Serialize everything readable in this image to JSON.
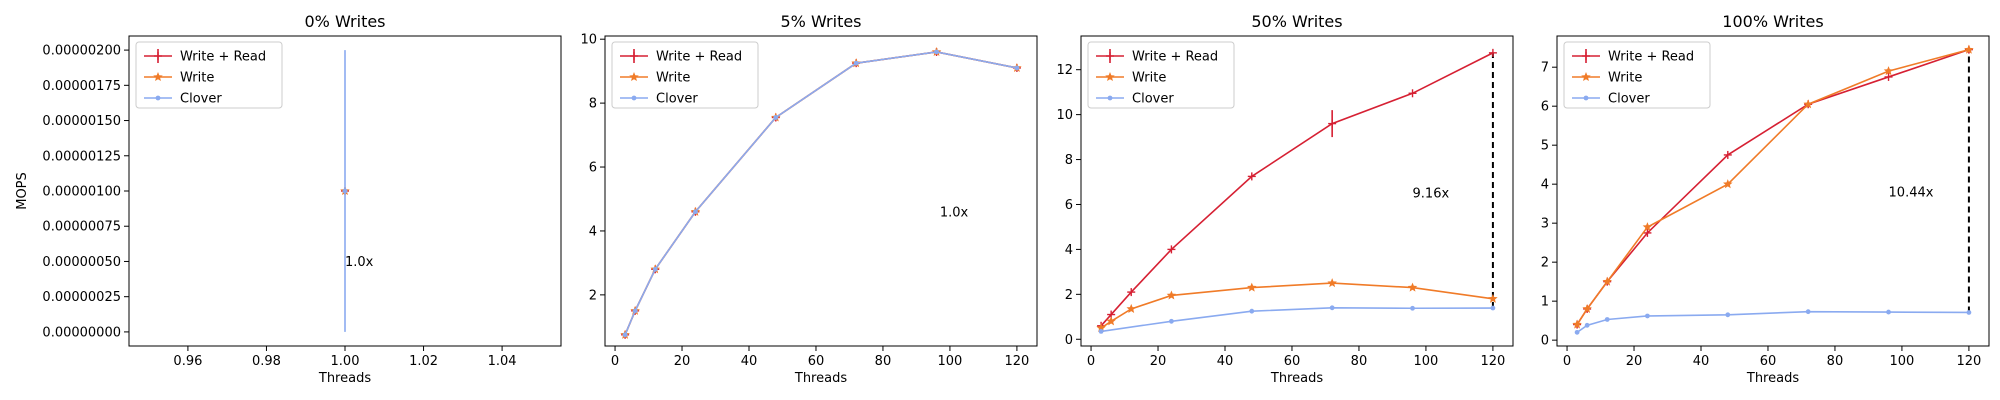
{
  "colors": {
    "write_read": "#d62033",
    "write": "#f07b28",
    "clover": "#8aaaf0",
    "ratio_line": "#000000"
  },
  "chart_data": [
    {
      "type": "line",
      "title": "0% Writes",
      "xlabel": "Threads",
      "ylabel": "MOPS",
      "xlim": [
        0.945,
        1.055
      ],
      "ylim": [
        -1e-07,
        2.1e-06
      ],
      "xticks": [
        0.96,
        0.98,
        1.0,
        1.02,
        1.04
      ],
      "xtick_labels": [
        "0.96",
        "0.98",
        "1.00",
        "1.02",
        "1.04"
      ],
      "yticks": [
        0,
        2.5e-07,
        5e-07,
        7.5e-07,
        1e-06,
        1.25e-06,
        1.5e-06,
        1.75e-06,
        2e-06
      ],
      "ytick_labels": [
        "0.00000000",
        "0.00000025",
        "0.00000050",
        "0.00000075",
        "0.00000100",
        "0.00000125",
        "0.00000150",
        "0.00000175",
        "0.00000200"
      ],
      "legend_position": "top-left",
      "series": [
        {
          "name": "Write + Read",
          "color": "#d62033",
          "marker": "plus",
          "x": [
            1
          ],
          "y": [
            1e-06
          ],
          "err": [
            0
          ]
        },
        {
          "name": "Write",
          "color": "#f07b28",
          "marker": "star",
          "x": [
            1
          ],
          "y": [
            1e-06
          ],
          "err": [
            0
          ]
        },
        {
          "name": "Clover",
          "color": "#8aaaf0",
          "marker": "dot",
          "x": [
            1
          ],
          "y": [
            1e-06
          ],
          "err": [
            1e-06
          ]
        }
      ],
      "annotation": {
        "text": "1.0x",
        "x": 1.0,
        "y": 5e-07
      }
    },
    {
      "type": "line",
      "title": "5% Writes",
      "xlabel": "Threads",
      "ylabel": "",
      "xlim": [
        -3,
        126
      ],
      "ylim": [
        0.4,
        10.1
      ],
      "xticks": [
        0,
        20,
        40,
        60,
        80,
        100,
        120
      ],
      "xtick_labels": [
        "0",
        "20",
        "40",
        "60",
        "80",
        "100",
        "120"
      ],
      "yticks": [
        2,
        4,
        6,
        8,
        10
      ],
      "ytick_labels": [
        "2",
        "4",
        "6",
        "8",
        "10"
      ],
      "legend_position": "top-left",
      "series": [
        {
          "name": "Write + Read",
          "color": "#d62033",
          "marker": "plus",
          "x": [
            3,
            6,
            12,
            24,
            48,
            72,
            96,
            120
          ],
          "y": [
            0.75,
            1.5,
            2.8,
            4.6,
            7.55,
            9.25,
            9.6,
            9.1
          ],
          "err": [
            0,
            0,
            0,
            0,
            0,
            0,
            0,
            0
          ]
        },
        {
          "name": "Write",
          "color": "#f07b28",
          "marker": "star",
          "x": [
            3,
            6,
            12,
            24,
            48,
            72,
            96,
            120
          ],
          "y": [
            0.75,
            1.5,
            2.8,
            4.6,
            7.55,
            9.25,
            9.6,
            9.1
          ],
          "err": [
            0,
            0,
            0,
            0,
            0,
            0,
            0,
            0
          ]
        },
        {
          "name": "Clover",
          "color": "#8aaaf0",
          "marker": "dot",
          "x": [
            3,
            6,
            12,
            24,
            48,
            72,
            96,
            120
          ],
          "y": [
            0.75,
            1.5,
            2.8,
            4.6,
            7.55,
            9.25,
            9.6,
            9.1
          ],
          "err": [
            0,
            0,
            0,
            0,
            0,
            0,
            0,
            0
          ]
        }
      ],
      "annotation": {
        "text": "1.0x",
        "x": 97,
        "y": 4.6
      }
    },
    {
      "type": "line",
      "title": "50% Writes",
      "xlabel": "Threads",
      "ylabel": "",
      "xlim": [
        -3,
        126
      ],
      "ylim": [
        -0.3,
        13.5
      ],
      "xticks": [
        0,
        20,
        40,
        60,
        80,
        100,
        120
      ],
      "xtick_labels": [
        "0",
        "20",
        "40",
        "60",
        "80",
        "100",
        "120"
      ],
      "yticks": [
        0,
        2,
        4,
        6,
        8,
        10,
        12
      ],
      "ytick_labels": [
        "0",
        "2",
        "4",
        "6",
        "8",
        "10",
        "12"
      ],
      "legend_position": "top-left",
      "series": [
        {
          "name": "Write + Read",
          "color": "#d62033",
          "marker": "plus",
          "x": [
            3,
            6,
            12,
            24,
            48,
            72,
            96,
            120
          ],
          "y": [
            0.6,
            1.1,
            2.1,
            4.0,
            7.25,
            9.6,
            10.95,
            12.75
          ],
          "err": [
            0,
            0,
            0,
            0,
            0,
            0.6,
            0,
            0
          ]
        },
        {
          "name": "Write",
          "color": "#f07b28",
          "marker": "star",
          "x": [
            3,
            6,
            12,
            24,
            48,
            72,
            96,
            120
          ],
          "y": [
            0.5,
            0.8,
            1.35,
            1.95,
            2.3,
            2.5,
            2.3,
            1.8
          ],
          "err": [
            0,
            0,
            0,
            0,
            0,
            0,
            0,
            0
          ]
        },
        {
          "name": "Clover",
          "color": "#8aaaf0",
          "marker": "dot",
          "x": [
            3,
            24,
            48,
            72,
            96,
            120
          ],
          "y": [
            0.35,
            0.8,
            1.25,
            1.4,
            1.38,
            1.39
          ],
          "err": [
            0,
            0,
            0,
            0,
            0,
            0
          ]
        }
      ],
      "ratio_line": {
        "x": 120,
        "y1": 1.39,
        "y2": 12.75
      },
      "annotation": {
        "text": "9.16x",
        "x": 96,
        "y": 6.5
      }
    },
    {
      "type": "line",
      "title": "100% Writes",
      "xlabel": "Threads",
      "ylabel": "",
      "xlim": [
        -3,
        126
      ],
      "ylim": [
        -0.15,
        7.8
      ],
      "xticks": [
        0,
        20,
        40,
        60,
        80,
        100,
        120
      ],
      "xtick_labels": [
        "0",
        "20",
        "40",
        "60",
        "80",
        "100",
        "120"
      ],
      "yticks": [
        0,
        1,
        2,
        3,
        4,
        5,
        6,
        7
      ],
      "ytick_labels": [
        "0",
        "1",
        "2",
        "3",
        "4",
        "5",
        "6",
        "7"
      ],
      "legend_position": "top-left",
      "series": [
        {
          "name": "Write + Read",
          "color": "#d62033",
          "marker": "plus",
          "x": [
            3,
            6,
            12,
            24,
            48,
            72,
            96,
            120
          ],
          "y": [
            0.4,
            0.8,
            1.5,
            2.75,
            4.75,
            6.05,
            6.75,
            7.45
          ],
          "err": [
            0,
            0,
            0,
            0,
            0,
            0,
            0,
            0
          ]
        },
        {
          "name": "Write",
          "color": "#f07b28",
          "marker": "star",
          "x": [
            3,
            6,
            12,
            24,
            48,
            72,
            96,
            120
          ],
          "y": [
            0.4,
            0.8,
            1.5,
            2.9,
            4.0,
            6.05,
            6.9,
            7.45
          ],
          "err": [
            0,
            0,
            0,
            0,
            0,
            0,
            0,
            0
          ]
        },
        {
          "name": "Clover",
          "color": "#8aaaf0",
          "marker": "dot",
          "x": [
            3,
            6,
            12,
            24,
            48,
            72,
            96,
            120
          ],
          "y": [
            0.2,
            0.38,
            0.53,
            0.62,
            0.65,
            0.73,
            0.72,
            0.71
          ],
          "err": [
            0,
            0,
            0,
            0,
            0,
            0,
            0,
            0
          ]
        }
      ],
      "ratio_line": {
        "x": 120,
        "y1": 0.71,
        "y2": 7.45
      },
      "annotation": {
        "text": "10.44x",
        "x": 96,
        "y": 3.8
      }
    }
  ]
}
